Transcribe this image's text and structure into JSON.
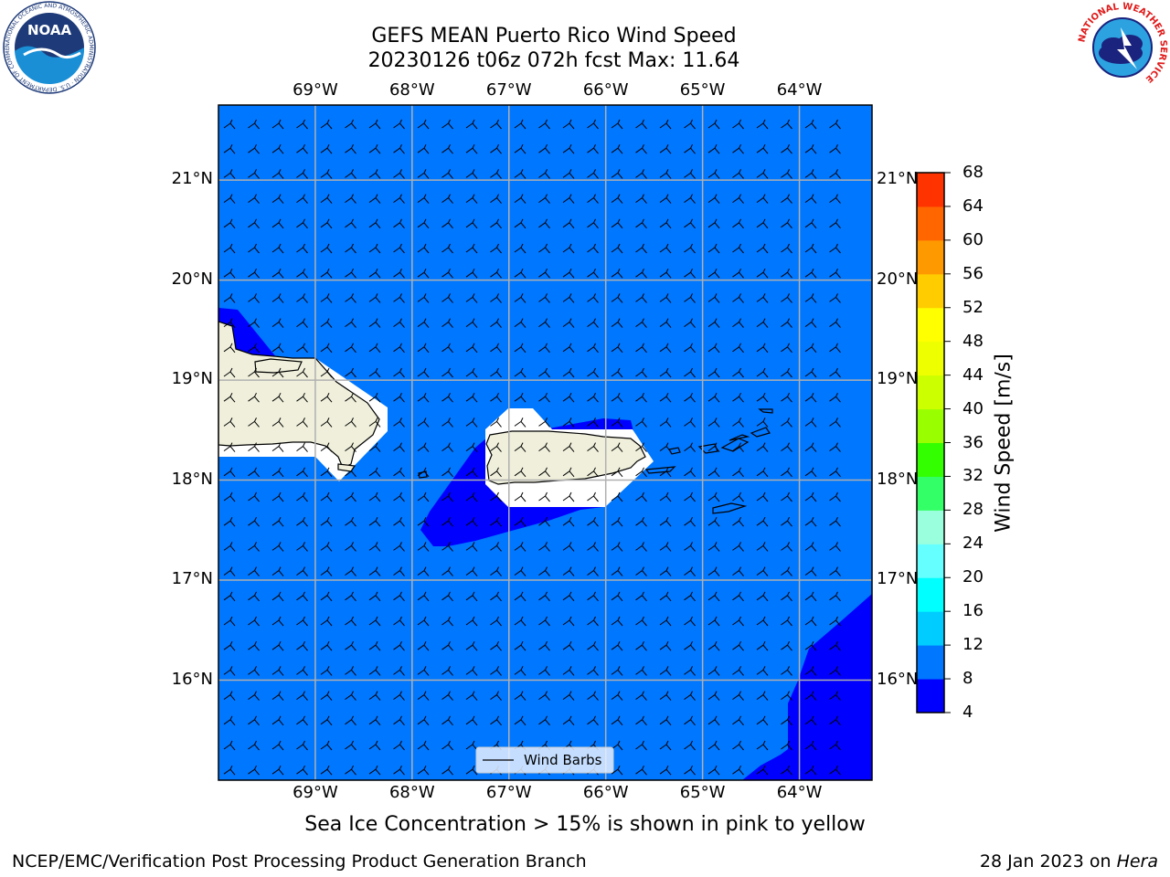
{
  "title": {
    "line1": "GEFS MEAN Puerto Rico Wind Speed",
    "line2": "20230126 t06z 072h fcst   Max: 11.64"
  },
  "subtitle": "Sea Ice Concentration > 15% is shown in pink to yellow",
  "footer": {
    "left": "NCEP/EMC/Verification Post Processing Product Generation Branch",
    "right_date": "28 Jan 2023 on",
    "right_machine": "Hera"
  },
  "logos": {
    "noaa": {
      "text": "NOAA",
      "ring_text": "NATIONAL OCEANIC AND ATMOSPHERIC ADMINISTRATION · U.S. DEPARTMENT OF COMMERCE"
    },
    "nws": {
      "ring_text": "NATIONAL WEATHER SERVICE"
    }
  },
  "map": {
    "lon_range": [
      -70,
      -63.25
    ],
    "lat_range": [
      15,
      21.75
    ],
    "lon_ticks": [
      {
        "value": -69,
        "label": "69°W"
      },
      {
        "value": -68,
        "label": "68°W"
      },
      {
        "value": -67,
        "label": "67°W"
      },
      {
        "value": -66,
        "label": "66°W"
      },
      {
        "value": -65,
        "label": "65°W"
      },
      {
        "value": -64,
        "label": "64°W"
      }
    ],
    "lat_ticks": [
      {
        "value": 21,
        "label": "21°N"
      },
      {
        "value": 20,
        "label": "20°N"
      },
      {
        "value": 19,
        "label": "19°N"
      },
      {
        "value": 18,
        "label": "18°N"
      },
      {
        "value": 17,
        "label": "17°N"
      },
      {
        "value": 16,
        "label": "16°N"
      }
    ],
    "legend_label": "Wind Barbs",
    "ocean_color": "#0077ff",
    "low_wind_color": "#0000ff",
    "land_color": "#efefdb",
    "grid_color": "#b0b0b0"
  },
  "colorbar": {
    "label": "Wind Speed [m/s]",
    "levels": [
      4,
      8,
      12,
      16,
      20,
      24,
      28,
      32,
      36,
      40,
      44,
      48,
      52,
      56,
      60,
      64,
      68
    ],
    "colors": [
      "#0000ff",
      "#0077ff",
      "#00ccff",
      "#00ffff",
      "#66ffff",
      "#99ffdd",
      "#33ff66",
      "#33ff00",
      "#99ff00",
      "#ccff00",
      "#eeff00",
      "#ffff00",
      "#ffcc00",
      "#ff9900",
      "#ff6600",
      "#ff3300"
    ]
  }
}
